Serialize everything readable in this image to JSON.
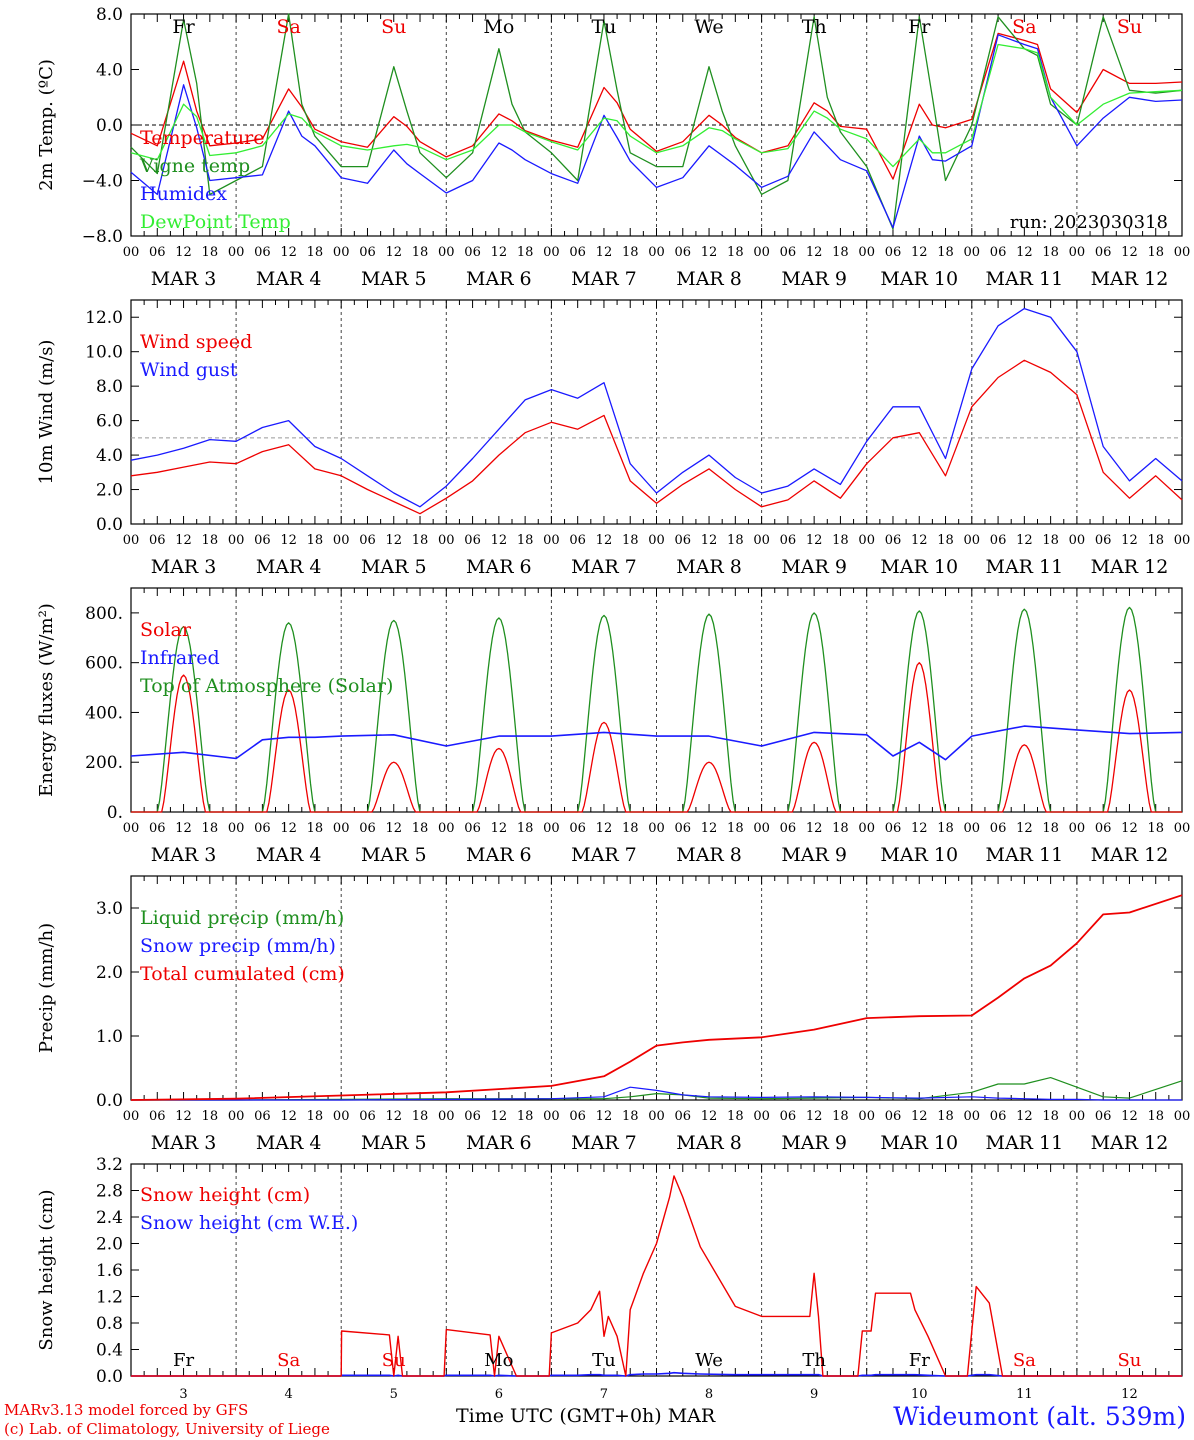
{
  "colors": {
    "red": "#ee0000",
    "blue": "#1a1aff",
    "green": "#1f8f1f",
    "lightgreen": "#33ee33",
    "grid": "#555555"
  },
  "footer": {
    "model": "MARv3.13 model forced by GFS",
    "lab": "(c) Lab. of Climatology, University of Liege",
    "axis_title": "Time UTC (GMT+0h) MAR",
    "site": "Wideumont (alt. 539m)"
  },
  "chart_data": [
    {
      "type": "line",
      "ylabel": "2m Temp. (ºC)",
      "ylim": [
        -8,
        8
      ],
      "yticks": [
        -8,
        -4,
        0,
        4,
        8
      ],
      "ytick_labels": [
        "−8.0",
        "−4.0",
        "0.0",
        "4.0",
        "8.0"
      ],
      "hline": 0,
      "run_label": "run: 2023030318",
      "day_labels": [
        "Fr",
        "Sa",
        "Su",
        "Mo",
        "Tu",
        "We",
        "Th",
        "Fr",
        "Sa",
        "Su"
      ],
      "day_colors": [
        "black",
        "red",
        "red",
        "black",
        "black",
        "black",
        "black",
        "black",
        "red",
        "red"
      ],
      "x_hours": [
        0,
        6,
        12,
        15,
        18,
        24,
        30,
        36,
        39,
        42,
        48,
        54,
        60,
        63,
        66,
        72,
        78,
        84,
        87,
        90,
        96,
        102,
        108,
        111,
        114,
        120,
        126,
        132,
        135,
        138,
        144,
        150,
        156,
        159,
        162,
        168,
        174,
        180,
        183,
        186,
        192,
        198,
        204,
        207,
        210,
        216,
        222,
        228,
        234,
        240
      ],
      "series": [
        {
          "name": "Temperature",
          "color": "red",
          "values": [
            -0.6,
            -1.5,
            4.6,
            1.0,
            -1.5,
            -1.3,
            -1.0,
            2.6,
            1.3,
            -0.3,
            -1.2,
            -1.6,
            0.6,
            -0.1,
            -1.2,
            -2.3,
            -1.5,
            0.8,
            0.3,
            -0.4,
            -1.1,
            -1.6,
            2.7,
            1.6,
            -0.3,
            -1.9,
            -1.2,
            0.7,
            0.0,
            -0.9,
            -2.0,
            -1.5,
            1.6,
            1.0,
            -0.1,
            -0.3,
            -3.9,
            1.5,
            0.0,
            -0.2,
            0.4,
            6.6,
            6.1,
            5.8,
            2.6,
            0.9,
            4.0,
            3.0,
            3.0,
            3.1
          ]
        },
        {
          "name": "Vigne temp",
          "color": "green",
          "values": [
            -1.6,
            -3.5,
            7.6,
            3.0,
            -5.0,
            -4.0,
            -3.0,
            8.0,
            1.5,
            -0.8,
            -3.0,
            -3.0,
            4.2,
            1.0,
            -2.0,
            -3.8,
            -2.0,
            5.5,
            1.5,
            -0.5,
            -2.0,
            -4.0,
            7.5,
            2.5,
            -2.0,
            -3.0,
            -3.0,
            4.2,
            1.0,
            -1.5,
            -5.0,
            -4.0,
            7.8,
            2.0,
            -0.5,
            -3.0,
            -7.5,
            7.8,
            2.0,
            -4.0,
            0.0,
            7.8,
            5.5,
            5.0,
            1.5,
            0.0,
            7.8,
            2.5,
            2.3,
            2.5
          ]
        },
        {
          "name": "Humidex",
          "color": "blue",
          "values": [
            -3.4,
            -5.0,
            2.9,
            -0.2,
            -4.0,
            -3.8,
            -3.6,
            1.0,
            -0.8,
            -1.5,
            -3.8,
            -4.2,
            -1.8,
            -2.8,
            -3.5,
            -4.9,
            -4.0,
            -1.3,
            -1.8,
            -2.5,
            -3.5,
            -4.2,
            0.7,
            -0.9,
            -2.6,
            -4.5,
            -3.8,
            -1.5,
            -2.2,
            -2.9,
            -4.5,
            -3.7,
            -0.5,
            -1.5,
            -2.5,
            -3.3,
            -7.4,
            -0.8,
            -2.5,
            -2.6,
            -1.5,
            6.5,
            5.8,
            5.5,
            2.0,
            -1.5,
            0.5,
            2.0,
            1.7,
            1.8
          ]
        },
        {
          "name": "DewPoint Temp",
          "color": "lightgreen",
          "values": [
            -2.0,
            -2.5,
            1.5,
            0.6,
            -2.2,
            -2.0,
            -1.5,
            0.8,
            0.5,
            -0.5,
            -1.5,
            -1.8,
            -1.5,
            -1.4,
            -1.6,
            -2.5,
            -1.8,
            0.0,
            0.0,
            -0.5,
            -1.2,
            -1.8,
            0.5,
            0.3,
            -0.8,
            -2.0,
            -1.5,
            -0.2,
            -0.4,
            -1.0,
            -2.0,
            -1.7,
            1.0,
            0.5,
            -0.3,
            -1.0,
            -3.0,
            -1.0,
            -2.0,
            -2.0,
            -1.0,
            5.8,
            5.5,
            5.2,
            2.0,
            0.0,
            1.5,
            2.3,
            2.4,
            2.5
          ]
        }
      ]
    },
    {
      "type": "line",
      "ylabel": "10m Wind (m/s)",
      "ylim": [
        0,
        13
      ],
      "yticks": [
        0,
        2,
        4,
        6,
        8,
        10,
        12
      ],
      "ytick_labels": [
        "0.0",
        "2.0",
        "4.0",
        "6.0",
        "8.0",
        "10.0",
        "12.0"
      ],
      "hline": 5,
      "x_hours": [
        0,
        6,
        12,
        18,
        24,
        30,
        36,
        42,
        48,
        54,
        60,
        66,
        72,
        78,
        84,
        90,
        96,
        102,
        108,
        114,
        120,
        126,
        132,
        138,
        144,
        150,
        156,
        162,
        168,
        174,
        180,
        186,
        192,
        198,
        204,
        210,
        216,
        222,
        228,
        234,
        240
      ],
      "series": [
        {
          "name": "Wind speed",
          "color": "red",
          "values": [
            2.8,
            3.0,
            3.3,
            3.6,
            3.5,
            4.2,
            4.6,
            3.2,
            2.8,
            2.0,
            1.3,
            0.6,
            1.5,
            2.5,
            4.0,
            5.3,
            5.9,
            5.5,
            6.3,
            2.5,
            1.2,
            2.3,
            3.2,
            2.0,
            1.0,
            1.4,
            2.5,
            1.5,
            3.5,
            5.0,
            5.3,
            2.8,
            6.8,
            8.5,
            9.5,
            8.8,
            7.5,
            3.0,
            1.5,
            2.8,
            1.4
          ]
        },
        {
          "name": "Wind gust",
          "color": "blue",
          "values": [
            3.7,
            4.0,
            4.4,
            4.9,
            4.8,
            5.6,
            6.0,
            4.5,
            3.8,
            2.8,
            1.8,
            1.0,
            2.2,
            3.8,
            5.5,
            7.2,
            7.8,
            7.3,
            8.2,
            3.5,
            1.8,
            3.0,
            4.0,
            2.7,
            1.8,
            2.2,
            3.2,
            2.3,
            4.8,
            6.8,
            6.8,
            3.8,
            9.0,
            11.5,
            12.5,
            12.0,
            10.0,
            4.5,
            2.5,
            3.8,
            2.5
          ]
        }
      ]
    },
    {
      "type": "line",
      "ylabel": "Energy fluxes (W/m²)",
      "ylim": [
        0,
        900
      ],
      "yticks": [
        0,
        200,
        400,
        600,
        800
      ],
      "ytick_labels": [
        "0.",
        "200.",
        "400.",
        "600.",
        "800."
      ],
      "peak_hour": [
        12,
        36,
        60,
        84,
        108,
        132,
        156,
        180,
        204,
        228
      ],
      "series": [
        {
          "name": "Solar",
          "color": "red",
          "values": [
            550,
            490,
            200,
            255,
            360,
            200,
            280,
            600,
            270,
            490
          ]
        },
        {
          "name": "Infrared",
          "color": "blue",
          "x_hours": [
            0,
            12,
            24,
            30,
            36,
            42,
            48,
            60,
            72,
            84,
            96,
            108,
            120,
            132,
            144,
            156,
            168,
            174,
            180,
            186,
            192,
            204,
            216,
            228,
            240
          ],
          "values": [
            225,
            240,
            215,
            290,
            300,
            300,
            305,
            310,
            265,
            305,
            305,
            320,
            305,
            305,
            265,
            320,
            310,
            225,
            280,
            210,
            305,
            345,
            330,
            315,
            320
          ]
        },
        {
          "name": "Top of Atmosphere (Solar)",
          "color": "green",
          "values": [
            745,
            760,
            770,
            780,
            790,
            795,
            800,
            808,
            815,
            822
          ]
        }
      ]
    },
    {
      "type": "line",
      "ylabel": "Precip (mm/h)",
      "ylim": [
        0,
        3.5
      ],
      "yticks": [
        0,
        1,
        2,
        3
      ],
      "ytick_labels": [
        "0.0",
        "1.0",
        "2.0",
        "3.0"
      ],
      "x_hours": [
        0,
        24,
        48,
        72,
        96,
        108,
        114,
        120,
        126,
        132,
        144,
        156,
        168,
        180,
        192,
        198,
        204,
        210,
        216,
        222,
        228,
        240
      ],
      "series": [
        {
          "name": "Liquid precip (mm/h)",
          "color": "green",
          "values": [
            0,
            0,
            0.01,
            0.02,
            0.02,
            0.02,
            0.05,
            0.1,
            0.08,
            0.03,
            0.02,
            0.03,
            0.04,
            0.02,
            0.12,
            0.25,
            0.25,
            0.35,
            0.2,
            0.05,
            0.03,
            0.3
          ]
        },
        {
          "name": "Snow precip (mm/h)",
          "color": "blue",
          "values": [
            0,
            0,
            0,
            0.01,
            0.02,
            0.05,
            0.2,
            0.15,
            0.08,
            0.05,
            0.04,
            0.05,
            0.04,
            0.03,
            0.05,
            0.03,
            0.02,
            0.01,
            0.01,
            0.0,
            0.0,
            0.0
          ]
        },
        {
          "name": "Total cumulated (cm)",
          "color": "red",
          "values": [
            0,
            0.02,
            0.07,
            0.12,
            0.22,
            0.37,
            0.6,
            0.85,
            0.9,
            0.94,
            0.98,
            1.1,
            1.28,
            1.31,
            1.32,
            1.6,
            1.9,
            2.1,
            2.45,
            2.9,
            2.93,
            3.2
          ]
        }
      ]
    },
    {
      "type": "line",
      "ylabel": "Snow height (cm)",
      "ylim": [
        0,
        3.2
      ],
      "yticks": [
        0,
        0.4,
        0.8,
        1.2,
        1.6,
        2.0,
        2.4,
        2.8,
        3.2
      ],
      "ytick_labels": [
        "0.0",
        "0.4",
        "0.8",
        "1.2",
        "1.6",
        "2.0",
        "2.4",
        "2.8",
        "3.2"
      ],
      "bottom_day_labels": [
        "Fr",
        "Sa",
        "Su",
        "Mo",
        "Tu",
        "We",
        "Th",
        "Fr",
        "Sa",
        "Su"
      ],
      "bottom_day_colors": [
        "black",
        "red",
        "red",
        "black",
        "black",
        "black",
        "black",
        "black",
        "red",
        "red"
      ],
      "day_numbers": [
        "3",
        "4",
        "5",
        "6",
        "7",
        "8",
        "9",
        "10",
        "11",
        "12"
      ],
      "x_hours": [
        0,
        48,
        48.1,
        59,
        60,
        61,
        62,
        71.5,
        72,
        82,
        83,
        84,
        88,
        95.5,
        96,
        102,
        105,
        107,
        108,
        109,
        111,
        113,
        114,
        117,
        120,
        123,
        124,
        126,
        130,
        138,
        144,
        155,
        156,
        157,
        158,
        166,
        167,
        169,
        170,
        178,
        179,
        182,
        186,
        191,
        192,
        193,
        196,
        199,
        240
      ],
      "series": [
        {
          "name": "Snow height (cm)",
          "color": "red",
          "values": [
            0,
            0,
            0.68,
            0.62,
            0.0,
            0.6,
            0.0,
            0,
            0.7,
            0.62,
            0.0,
            0.6,
            0.0,
            0,
            0.65,
            0.8,
            1.0,
            1.28,
            0.6,
            0.9,
            0.6,
            0.0,
            1.0,
            1.55,
            2.0,
            2.7,
            3.02,
            2.7,
            1.95,
            1.05,
            0.9,
            0.9,
            1.55,
            0.9,
            0.0,
            0.0,
            0.68,
            0.68,
            1.25,
            1.25,
            1.0,
            0.6,
            0.0,
            0.0,
            0.68,
            1.35,
            1.1,
            0.0,
            0.0
          ]
        },
        {
          "name": "Snow height (cm W.E.)",
          "color": "blue",
          "values": [
            0,
            0,
            0.01,
            0.01,
            0.0,
            0.01,
            0.0,
            0,
            0.01,
            0.01,
            0.0,
            0.01,
            0.0,
            0,
            0.01,
            0.01,
            0.02,
            0.02,
            0.01,
            0.01,
            0.01,
            0.0,
            0.02,
            0.03,
            0.03,
            0.04,
            0.05,
            0.04,
            0.03,
            0.02,
            0.02,
            0.02,
            0.02,
            0.02,
            0.0,
            0.0,
            0.01,
            0.01,
            0.02,
            0.02,
            0.02,
            0.01,
            0.0,
            0.0,
            0.01,
            0.02,
            0.02,
            0.0,
            0.0
          ]
        }
      ]
    }
  ],
  "shared_axis": {
    "hour_labels": [
      "00",
      "06",
      "12",
      "18"
    ],
    "end_hour_label": "00",
    "date_labels": [
      "MAR 3",
      "MAR 4",
      "MAR 5",
      "MAR 6",
      "MAR 7",
      "MAR 8",
      "MAR 9",
      "MAR 10",
      "MAR 11",
      "MAR 12"
    ]
  }
}
